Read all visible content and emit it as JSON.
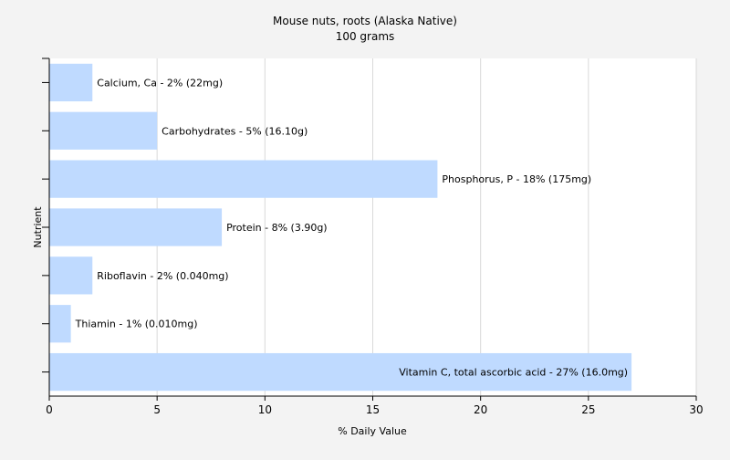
{
  "chart_data": {
    "type": "bar",
    "orientation": "horizontal",
    "title": "Mouse nuts, roots (Alaska Native)",
    "subtitle": "100 grams",
    "xlabel": "% Daily Value",
    "ylabel": "Nutrient",
    "xlim": [
      0,
      30
    ],
    "xticks": [
      0,
      5,
      10,
      15,
      20,
      25,
      30
    ],
    "grid": true,
    "bar_color": "#bfdaff",
    "background_color": "#f3f3f3",
    "plot_background": "#ffffff",
    "grid_color": "#d9d9d9",
    "categories": [
      "Calcium, Ca",
      "Carbohydrates",
      "Phosphorus, P",
      "Protein",
      "Riboflavin",
      "Thiamin",
      "Vitamin C, total ascorbic acid"
    ],
    "values": [
      2,
      5,
      18,
      8,
      2,
      1,
      27
    ],
    "labels": [
      "Calcium, Ca - 2% (22mg)",
      "Carbohydrates - 5% (16.10g)",
      "Phosphorus, P - 18% (175mg)",
      "Protein - 8% (3.90g)",
      "Riboflavin - 2% (0.040mg)",
      "Thiamin - 1% (0.010mg)",
      "Vitamin C, total ascorbic acid - 27% (16.0mg)"
    ]
  }
}
